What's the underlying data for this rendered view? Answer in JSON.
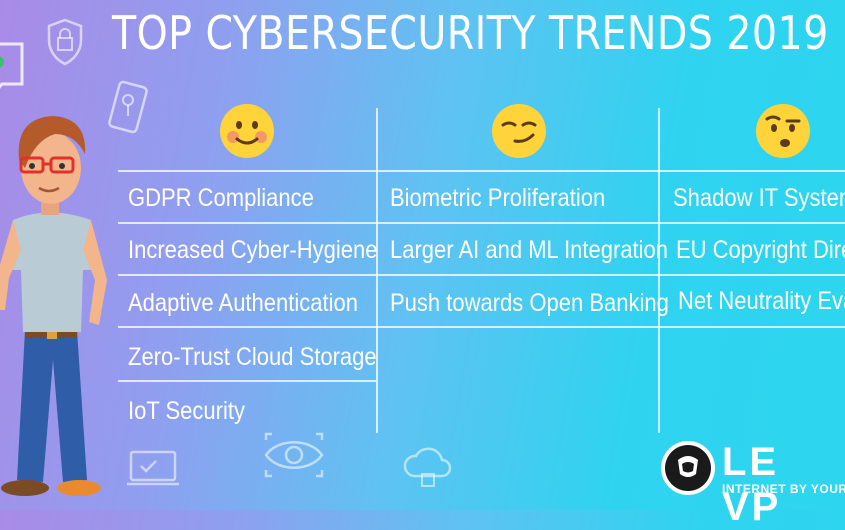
{
  "title": "TOP CYBERSECURITY TRENDS 2019",
  "columns": [
    {
      "emoji": "blushing-smile-face",
      "items": [
        "GDPR Compliance",
        "Increased Cyber-Hygiene",
        "Adaptive Authentication",
        "Zero-Trust Cloud Storage",
        "IoT Security"
      ]
    },
    {
      "emoji": "smirking-face",
      "items": [
        "Biometric Proliferation",
        "Larger AI and ML Integration",
        "Push towards Open Banking"
      ]
    },
    {
      "emoji": "raised-eyebrow-face",
      "items": [
        "Shadow IT Systems",
        "EU Copyright Direc",
        "Net Neutrality Eva"
      ]
    }
  ],
  "logo": {
    "name": "LE VP",
    "tagline": "INTERNET BY YOUR OWN"
  },
  "colors": {
    "bg_left": "#a98be6",
    "bg_right": "#2dd6ee",
    "emoji_yellow": "#ffd43b"
  }
}
